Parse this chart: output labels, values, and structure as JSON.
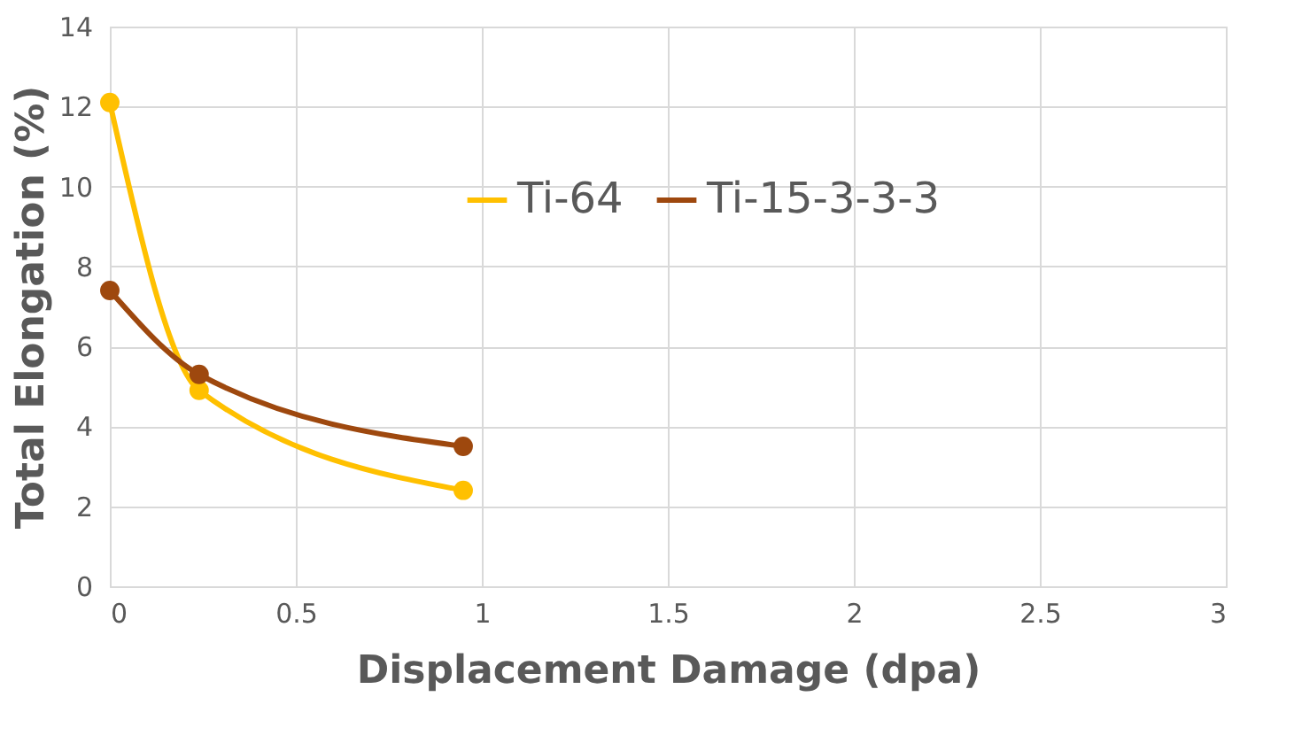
{
  "chart_data": {
    "type": "line",
    "xlabel": "Displacement Damage (dpa)",
    "ylabel": "Total Elongation (%)",
    "series": [
      {
        "name": "Ti-64",
        "color": "#ffc000",
        "x": [
          0,
          0.24,
          0.95
        ],
        "values": [
          12.1,
          4.9,
          2.4
        ]
      },
      {
        "name": "Ti-15-3-3-3",
        "color": "#9e480e",
        "x": [
          0,
          0.24,
          0.95
        ],
        "values": [
          7.4,
          5.3,
          3.5
        ]
      }
    ],
    "xlim": [
      0,
      3
    ],
    "xticks": [
      0,
      0.5,
      1,
      1.5,
      2,
      2.5,
      3
    ],
    "ylim": [
      0,
      14
    ],
    "yticks": [
      0,
      2,
      4,
      6,
      8,
      10,
      12,
      14
    ],
    "grid": true,
    "legend": "top right",
    "marker": "circle",
    "line_style": "solid"
  }
}
